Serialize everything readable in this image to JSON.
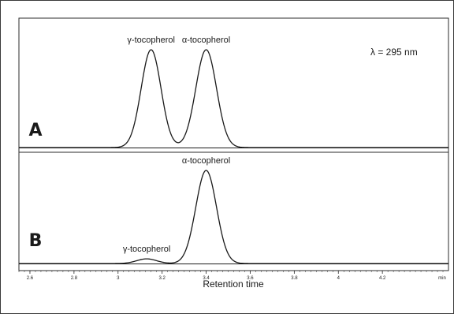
{
  "chart_data": {
    "type": "line",
    "title": "",
    "wavelength_label": "λ = 295 nm",
    "xlabel": "Retention time",
    "x_unit": "min",
    "xlim": [
      2.55,
      4.5
    ],
    "x_ticks": [
      2.6,
      2.8,
      3,
      3.2,
      3.4,
      3.6,
      3.8,
      4,
      4.2
    ],
    "x_tick_labels": [
      "2.6",
      "2.8",
      "3",
      "3.2",
      "3.4",
      "3.6",
      "3.8",
      "4",
      "4.2"
    ],
    "grid": false,
    "legend": "none",
    "panels": [
      {
        "letter": "A",
        "series": [
          {
            "peaks": [
              {
                "label": "γ-tocopherol",
                "retention_time": 3.15,
                "height": 1.0,
                "width": 0.045
              },
              {
                "label": "α-tocopherol",
                "retention_time": 3.4,
                "height": 1.0,
                "width": 0.047
              }
            ]
          }
        ]
      },
      {
        "letter": "B",
        "series": [
          {
            "peaks": [
              {
                "label": "γ-tocopherol",
                "retention_time": 3.13,
                "height": 0.05,
                "width": 0.045
              },
              {
                "label": "α-tocopherol",
                "retention_time": 3.4,
                "height": 1.0,
                "width": 0.047
              }
            ]
          }
        ]
      }
    ]
  }
}
